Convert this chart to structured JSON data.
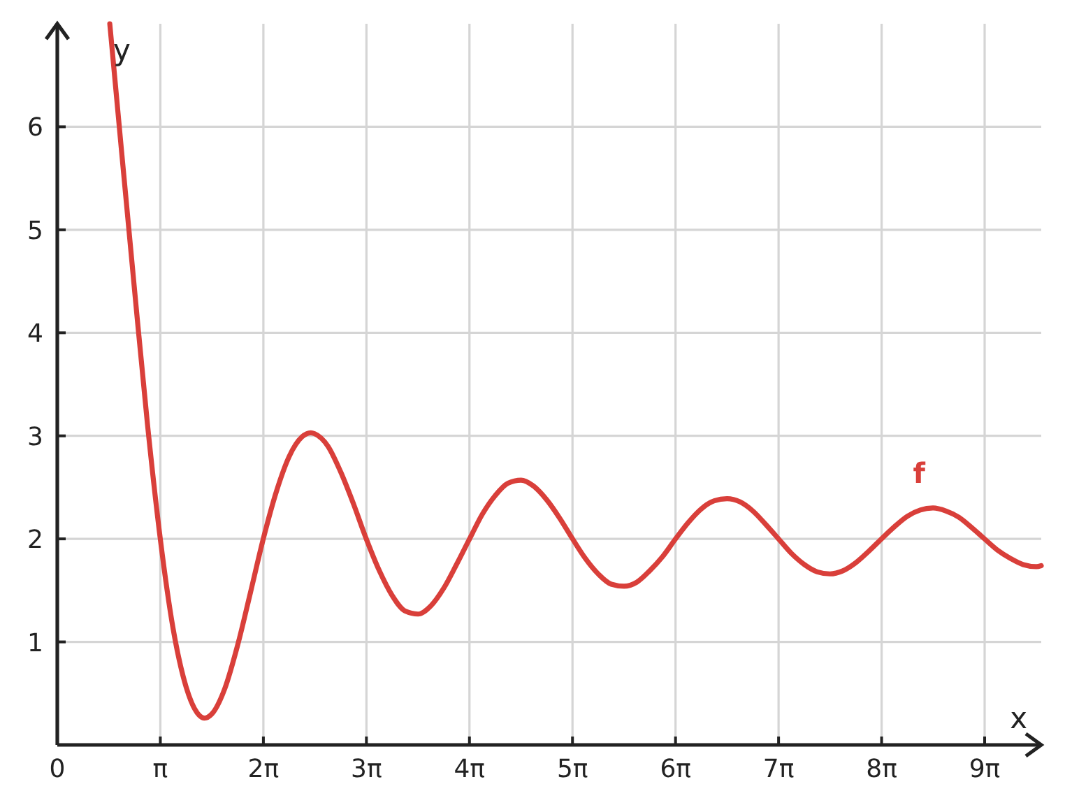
{
  "chart_data": {
    "type": "line",
    "xlabel": "x",
    "ylabel": "y",
    "xlim": [
      0,
      30
    ],
    "ylim": [
      0,
      7
    ],
    "xticks": [
      {
        "value": 0,
        "label": "0"
      },
      {
        "value": 3.1416,
        "label": "π"
      },
      {
        "value": 6.2832,
        "label": "2π"
      },
      {
        "value": 9.4248,
        "label": "3π"
      },
      {
        "value": 12.5664,
        "label": "4π"
      },
      {
        "value": 15.708,
        "label": "5π"
      },
      {
        "value": 18.8496,
        "label": "6π"
      },
      {
        "value": 21.9911,
        "label": "7π"
      },
      {
        "value": 25.1327,
        "label": "8π"
      },
      {
        "value": 28.2743,
        "label": "9π"
      }
    ],
    "yticks": [
      1,
      2,
      3,
      4,
      5,
      6
    ],
    "grid": true,
    "x": [
      1.6,
      1.96,
      2.36,
      2.75,
      3.14,
      3.53,
      3.93,
      4.32,
      4.49,
      4.71,
      5.11,
      5.5,
      5.89,
      6.28,
      6.68,
      7.07,
      7.46,
      7.73,
      7.85,
      8.25,
      8.64,
      9.03,
      9.42,
      9.82,
      10.21,
      10.6,
      11.0,
      11.39,
      11.78,
      12.17,
      12.57,
      12.96,
      13.35,
      13.74,
      14.14,
      14.53,
      14.92,
      15.32,
      15.71,
      16.1,
      16.49,
      16.89,
      17.28,
      17.67,
      18.06,
      18.46,
      18.85,
      19.24,
      19.63,
      20.03,
      20.42,
      20.81,
      21.21,
      21.6,
      21.99,
      22.38,
      22.78,
      23.17,
      23.56,
      23.95,
      24.35,
      24.74,
      25.13,
      25.53,
      25.92,
      26.31,
      26.7,
      27.1,
      27.49,
      27.88,
      28.27,
      28.67,
      29.06,
      29.45,
      29.85,
      30
    ],
    "series": [
      {
        "name": "f",
        "color": "#d93f3a",
        "values": [
          7.0,
          5.76,
          4.4,
          3.11,
          2.0,
          1.13,
          0.56,
          0.29,
          0.26,
          0.3,
          0.55,
          0.97,
          1.48,
          2.0,
          2.46,
          2.8,
          2.99,
          3.03,
          3.02,
          2.9,
          2.65,
          2.34,
          2.0,
          1.69,
          1.45,
          1.3,
          1.27,
          1.35,
          1.52,
          1.75,
          2.0,
          2.24,
          2.42,
          2.54,
          2.57,
          2.51,
          2.38,
          2.2,
          2.0,
          1.81,
          1.66,
          1.56,
          1.54,
          1.58,
          1.69,
          1.83,
          2.0,
          2.16,
          2.29,
          2.37,
          2.39,
          2.36,
          2.27,
          2.14,
          2.0,
          1.86,
          1.75,
          1.68,
          1.66,
          1.69,
          1.77,
          1.88,
          2.0,
          2.12,
          2.22,
          2.28,
          2.3,
          2.27,
          2.21,
          2.11,
          2.0,
          1.89,
          1.81,
          1.75,
          1.73,
          1.74
        ]
      }
    ]
  }
}
